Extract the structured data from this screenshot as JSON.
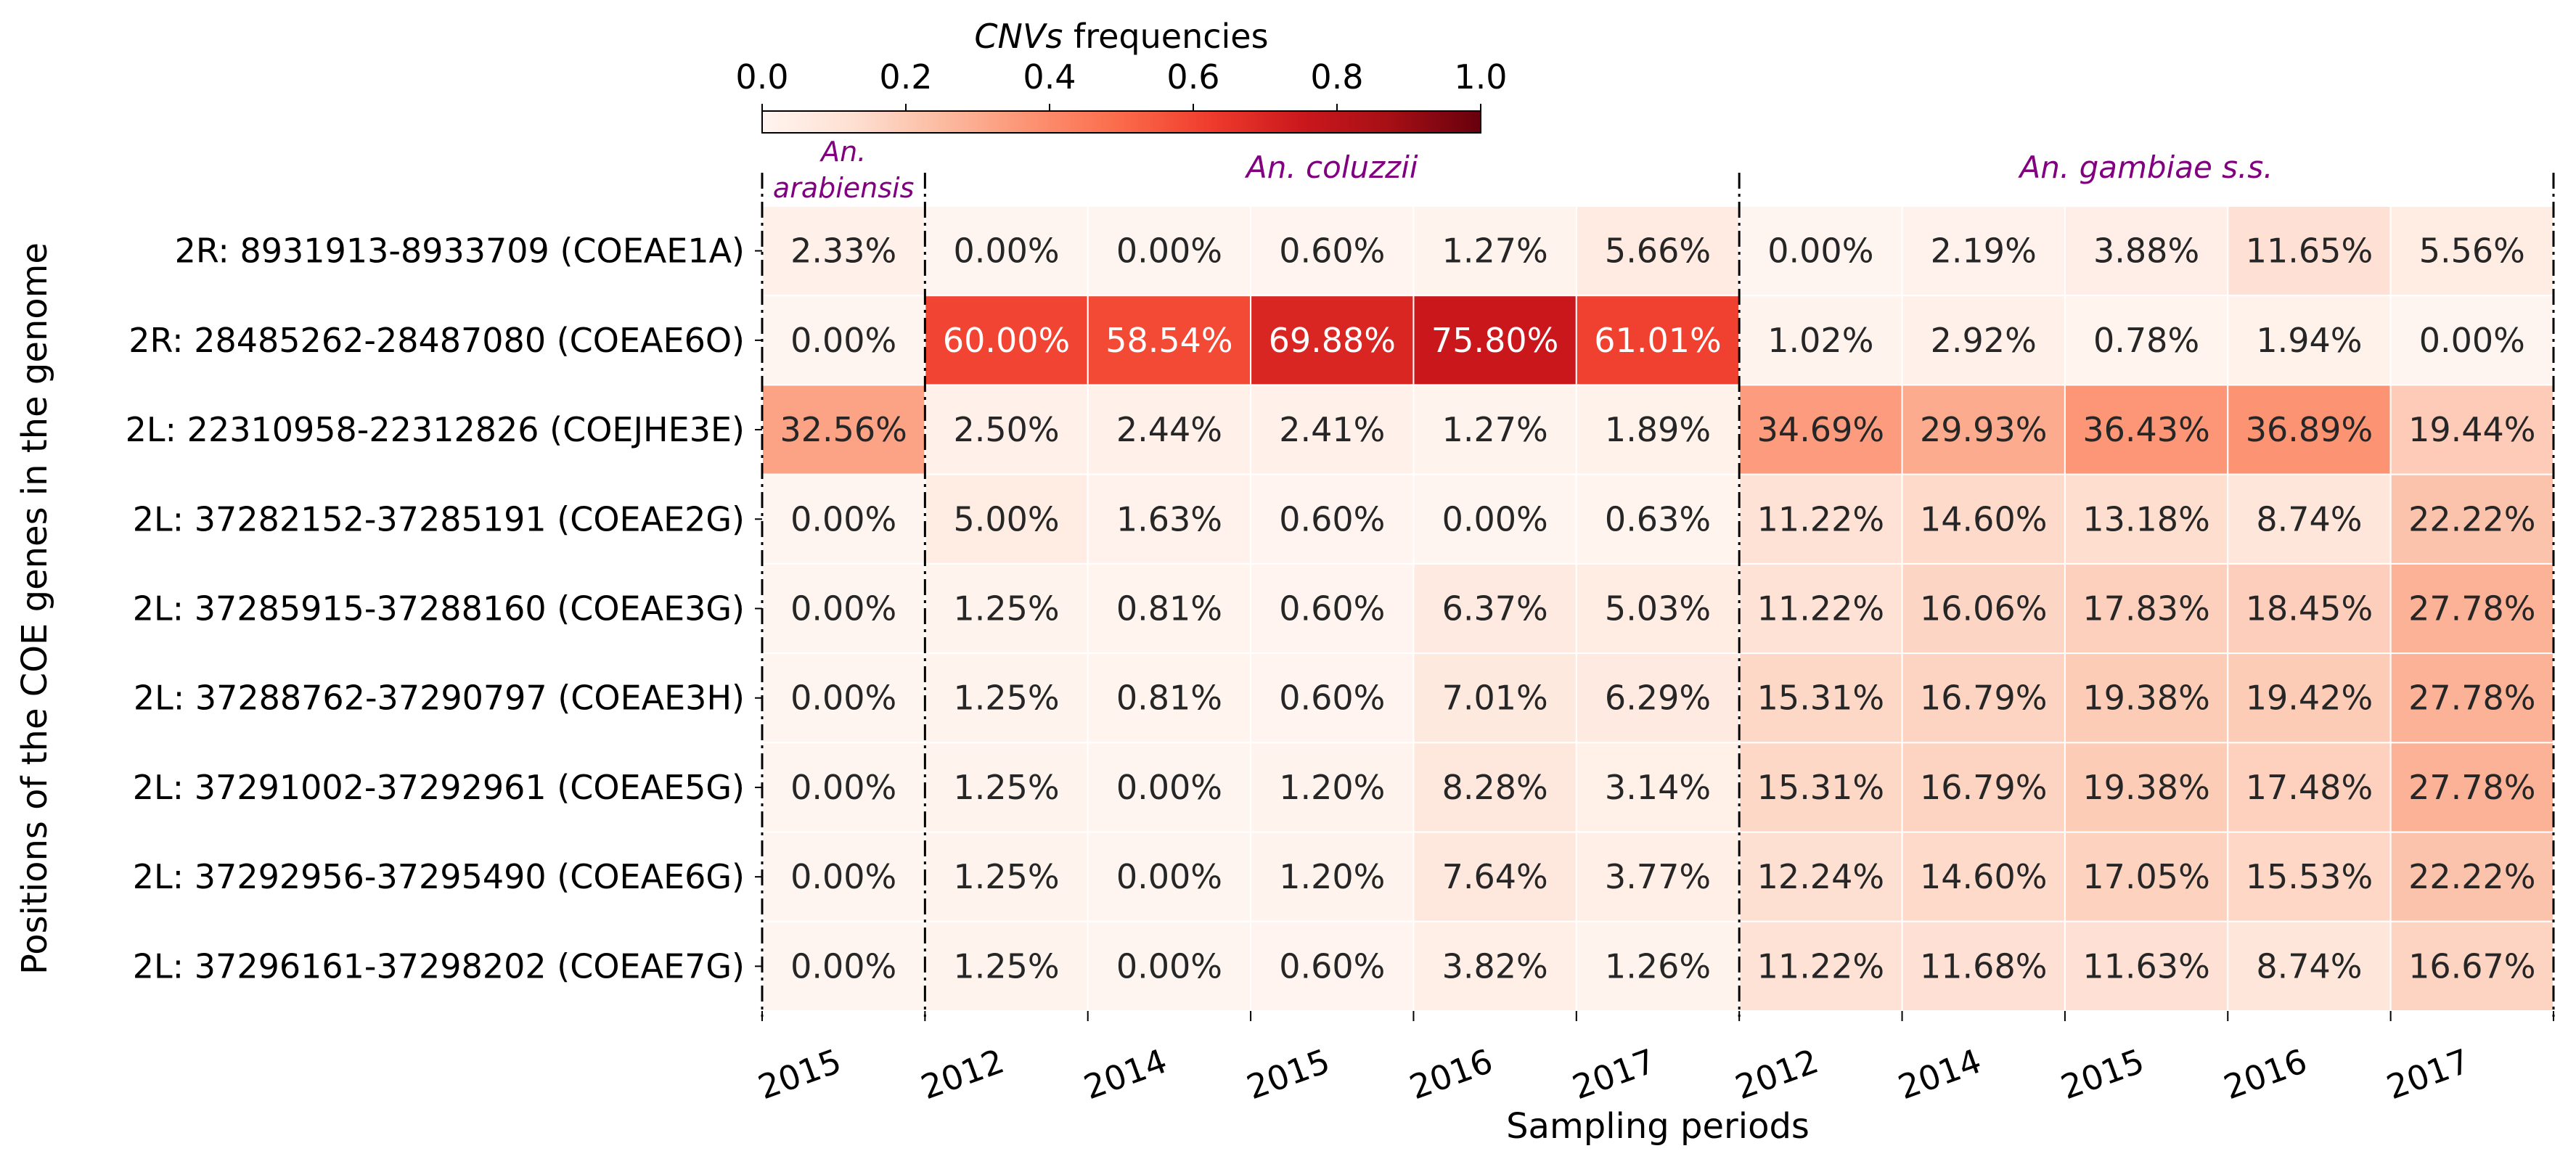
{
  "chart_data": {
    "type": "heatmap",
    "colorbar": {
      "title_italic": "CNVs",
      "title_rest": " frequencies",
      "ticks": [
        "0.0",
        "0.2",
        "0.4",
        "0.6",
        "0.8",
        "1.0"
      ],
      "range": [
        0,
        1
      ],
      "colormap": "Reds",
      "placement": "top"
    },
    "groups": [
      {
        "label_line1": "An.",
        "label_line2": "arabiensis",
        "ncols": 1
      },
      {
        "label": "An. coluzzii",
        "ncols": 5
      },
      {
        "label": "An. gambiae s.s.",
        "ncols": 5
      }
    ],
    "group_label_color": "#800080",
    "x_tick_labels": [
      "2015",
      "2012",
      "2014",
      "2015",
      "2016",
      "2017",
      "2012",
      "2014",
      "2015",
      "2016",
      "2017"
    ],
    "rows": [
      "2R: 8931913-8933709 (COEAE1A)",
      "2R: 28485262-28487080 (COEAE6O)",
      "2L: 22310958-22312826 (COEJHE3E)",
      "2L: 37282152-37285191 (COEAE2G)",
      "2L: 37285915-37288160 (COEAE3G)",
      "2L: 37288762-37290797 (COEAE3H)",
      "2L: 37291002-37292961 (COEAE5G)",
      "2L: 37292956-37295490 (COEAE6G)",
      "2L: 37296161-37298202 (COEAE7G)"
    ],
    "values": [
      [
        2.33,
        0.0,
        0.0,
        0.6,
        1.27,
        5.66,
        0.0,
        2.19,
        3.88,
        11.65,
        5.56
      ],
      [
        0.0,
        60.0,
        58.54,
        69.88,
        75.8,
        61.01,
        1.02,
        2.92,
        0.78,
        1.94,
        0.0
      ],
      [
        32.56,
        2.5,
        2.44,
        2.41,
        1.27,
        1.89,
        34.69,
        29.93,
        36.43,
        36.89,
        19.44
      ],
      [
        0.0,
        5.0,
        1.63,
        0.6,
        0.0,
        0.63,
        11.22,
        14.6,
        13.18,
        8.74,
        22.22
      ],
      [
        0.0,
        1.25,
        0.81,
        0.6,
        6.37,
        5.03,
        11.22,
        16.06,
        17.83,
        18.45,
        27.78
      ],
      [
        0.0,
        1.25,
        0.81,
        0.6,
        7.01,
        6.29,
        15.31,
        16.79,
        19.38,
        19.42,
        27.78
      ],
      [
        0.0,
        1.25,
        0.0,
        1.2,
        8.28,
        3.14,
        15.31,
        16.79,
        19.38,
        17.48,
        27.78
      ],
      [
        0.0,
        1.25,
        0.0,
        1.2,
        7.64,
        3.77,
        12.24,
        14.6,
        17.05,
        15.53,
        22.22
      ],
      [
        0.0,
        1.25,
        0.0,
        0.6,
        3.82,
        1.26,
        11.22,
        11.68,
        11.63,
        8.74,
        16.67
      ]
    ],
    "value_suffix": "%",
    "xlabel": "Sampling periods",
    "ylabel": "Positions of the COE genes in the genome",
    "grid": false
  }
}
